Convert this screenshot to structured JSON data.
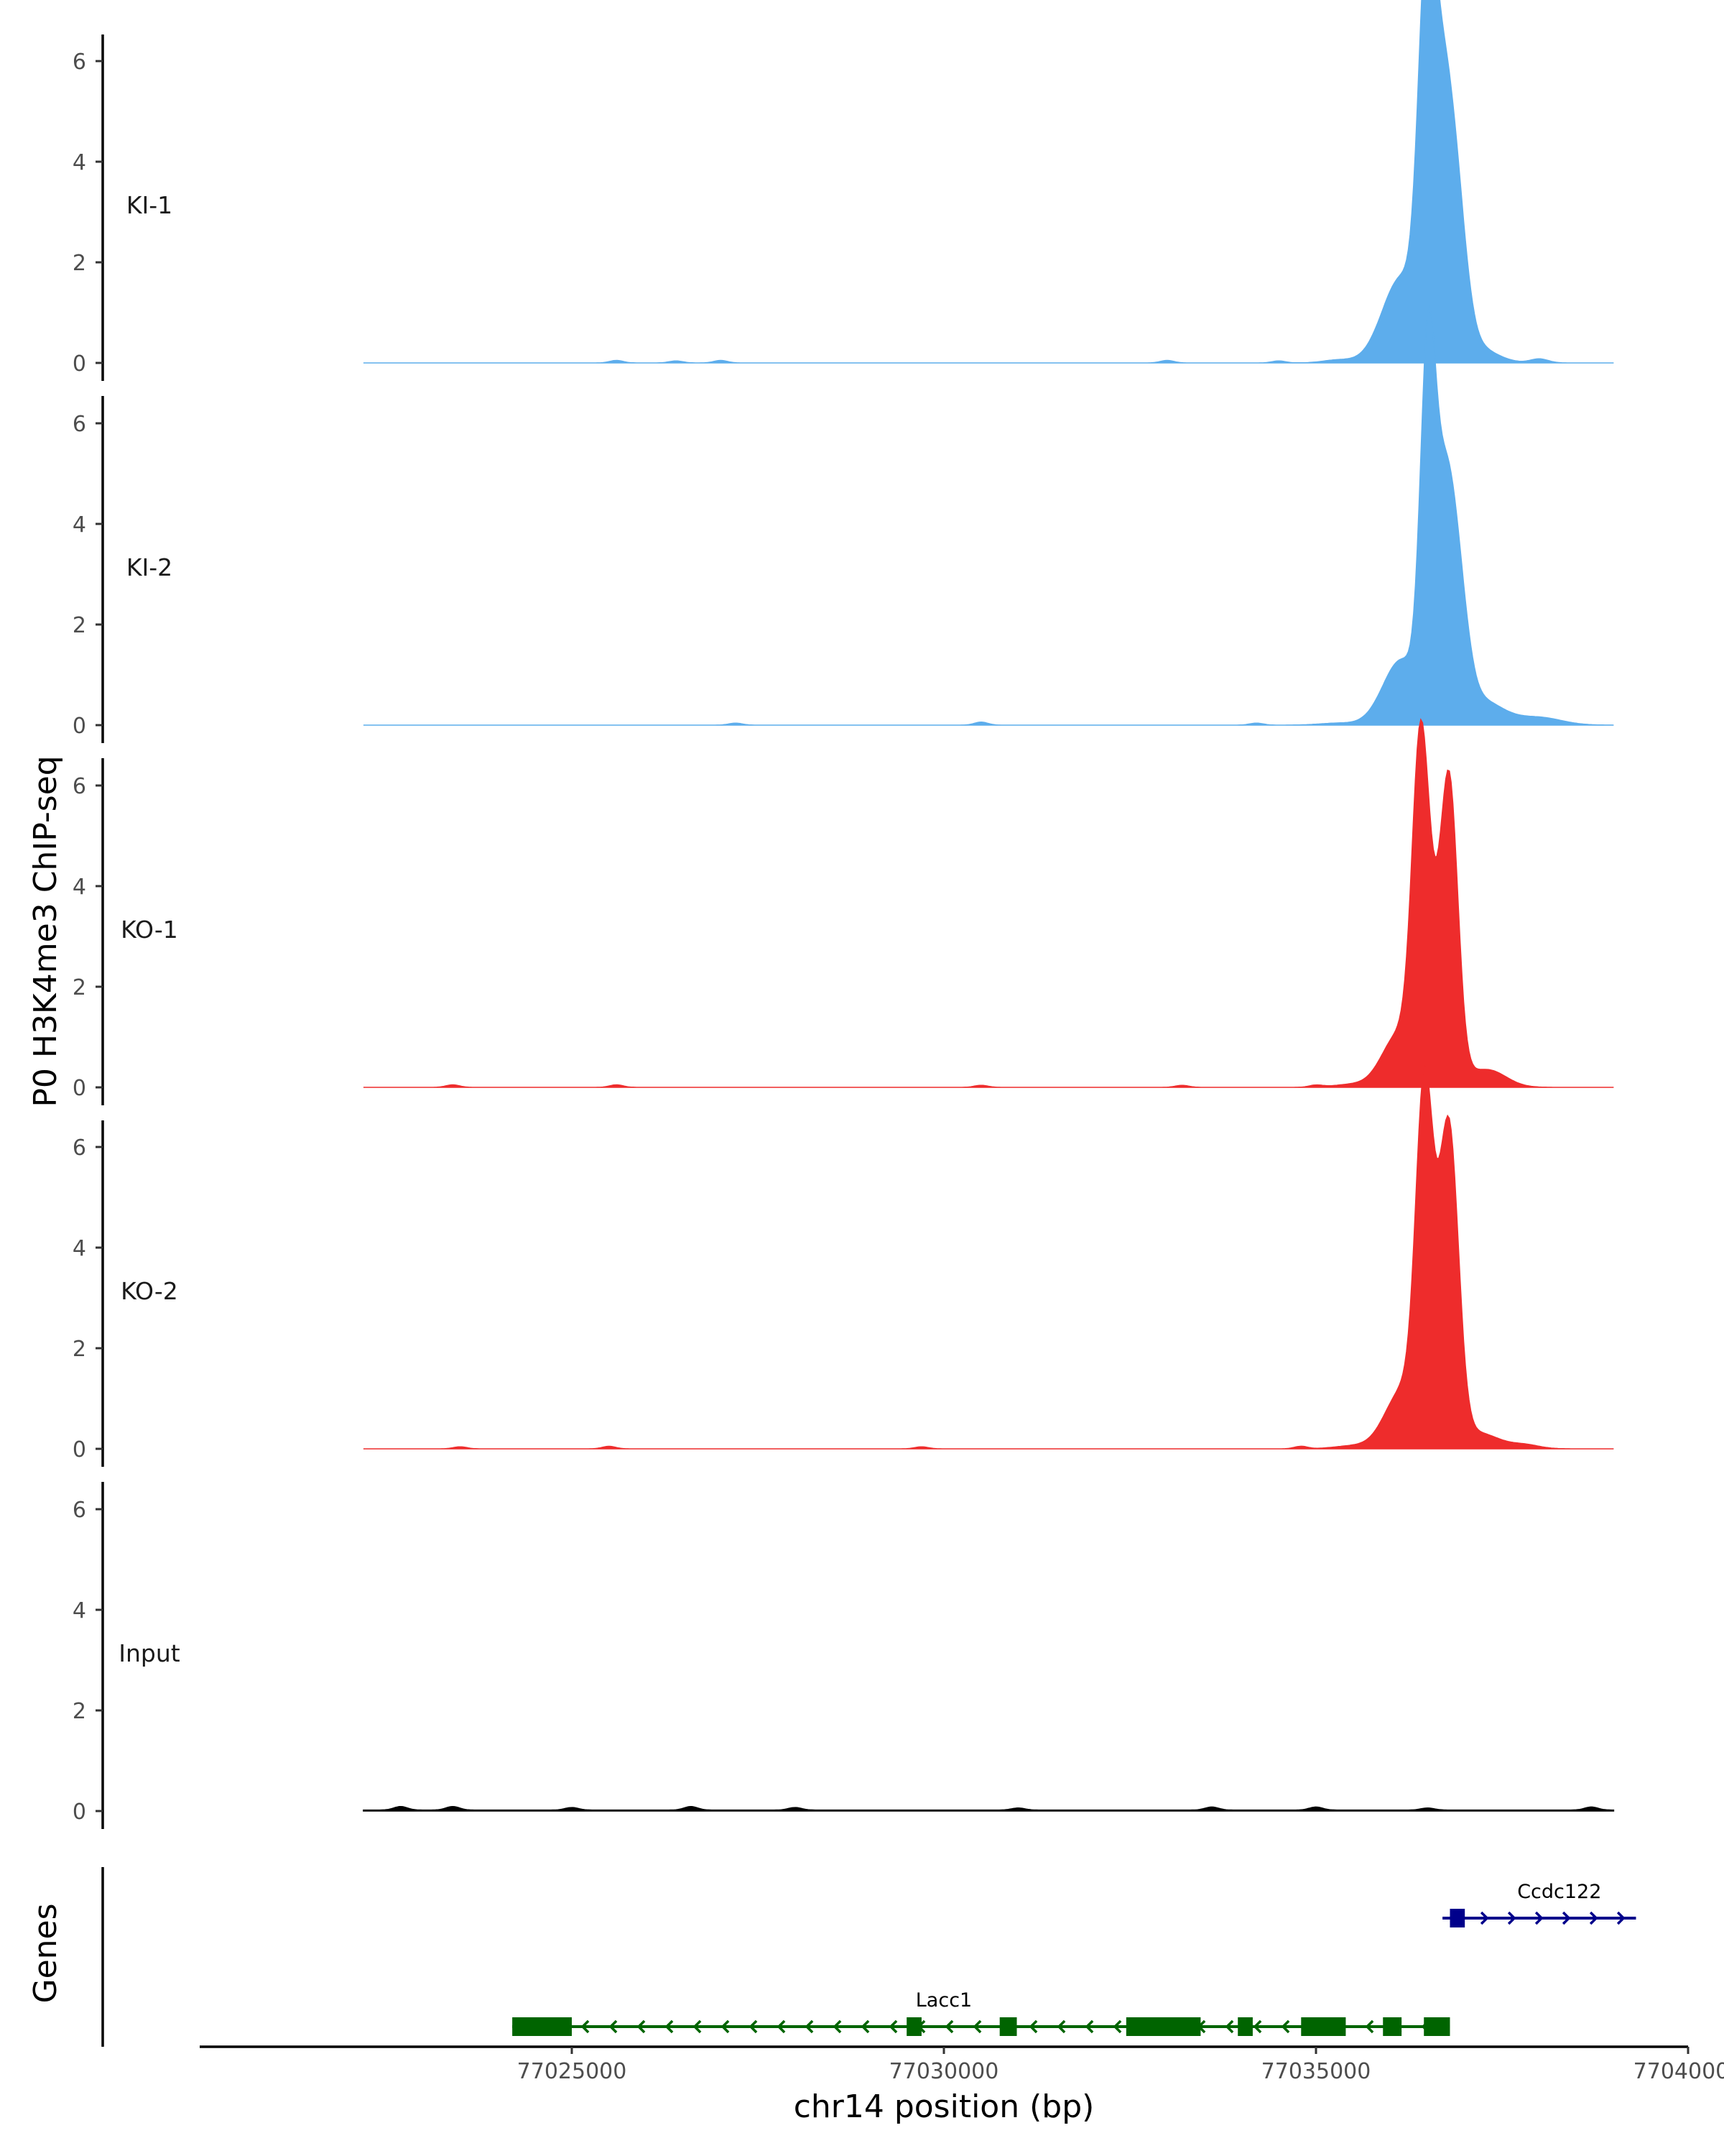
{
  "chart_data": {
    "type": "area",
    "ylabel": "P0 H3K4me3 ChIP-seq",
    "xlabel": "chr14 position (bp)",
    "genes_label": "Genes",
    "xlim": [
      77020000,
      77040000
    ],
    "xticks": [
      77025000,
      77030000,
      77035000,
      77040000
    ],
    "xtick_labels": [
      "77025000",
      "77030000",
      "77035000",
      "77040000"
    ],
    "ylim": [
      0,
      6.5
    ],
    "yticks": [
      0,
      2,
      4,
      6
    ],
    "ytick_labels": [
      "0",
      "2",
      "4",
      "6"
    ],
    "data_range": [
      77022200,
      77039000
    ],
    "tracks": [
      {
        "label": "KI-1",
        "color": "#5DADEC",
        "peaks": [
          [
            77036480,
            5.7,
            110
          ],
          [
            77036680,
            5.0,
            160
          ],
          [
            77036900,
            2.0,
            140
          ],
          [
            77036150,
            1.7,
            260
          ],
          [
            77037100,
            0.35,
            280
          ],
          [
            77038000,
            0.08,
            120
          ],
          [
            77035300,
            0.06,
            200
          ]
        ],
        "bumps": [
          [
            77025600,
            0.05
          ],
          [
            77026400,
            0.04
          ],
          [
            77027000,
            0.05
          ],
          [
            77033000,
            0.05
          ],
          [
            77034500,
            0.04
          ]
        ]
      },
      {
        "label": "KI-2",
        "color": "#5DADEC",
        "peaks": [
          [
            77036500,
            6.2,
            100
          ],
          [
            77036720,
            4.2,
            150
          ],
          [
            77036920,
            1.7,
            140
          ],
          [
            77036150,
            1.3,
            250
          ],
          [
            77037200,
            0.5,
            300
          ],
          [
            77038000,
            0.15,
            300
          ],
          [
            77035300,
            0.04,
            250
          ]
        ],
        "bumps": [
          [
            77027200,
            0.04
          ],
          [
            77030500,
            0.06
          ],
          [
            77034200,
            0.04
          ]
        ]
      },
      {
        "label": "KO-1",
        "color": "#EE2C2C",
        "peaks": [
          [
            77036400,
            5.3,
            110
          ],
          [
            77036800,
            4.6,
            110
          ],
          [
            77036600,
            2.6,
            200
          ],
          [
            77036100,
            1.0,
            220
          ],
          [
            77037300,
            0.35,
            250
          ],
          [
            77035500,
            0.06,
            250
          ]
        ],
        "bumps": [
          [
            77023400,
            0.05
          ],
          [
            77025600,
            0.05
          ],
          [
            77030500,
            0.04
          ],
          [
            77033200,
            0.04
          ],
          [
            77035000,
            0.04
          ]
        ]
      },
      {
        "label": "KO-2",
        "color": "#EE2C2C",
        "peaks": [
          [
            77036450,
            5.3,
            110
          ],
          [
            77036800,
            4.7,
            120
          ],
          [
            77036620,
            2.5,
            200
          ],
          [
            77036150,
            1.1,
            230
          ],
          [
            77037200,
            0.3,
            260
          ],
          [
            77037800,
            0.08,
            200
          ],
          [
            77035500,
            0.06,
            250
          ]
        ],
        "bumps": [
          [
            77023500,
            0.04
          ],
          [
            77025500,
            0.05
          ],
          [
            77029700,
            0.04
          ],
          [
            77034800,
            0.05
          ]
        ]
      },
      {
        "label": "Input",
        "color": "#000000",
        "peaks": [],
        "bumps": [
          [
            77022700,
            0.07
          ],
          [
            77023400,
            0.07
          ],
          [
            77025000,
            0.05
          ],
          [
            77026600,
            0.07
          ],
          [
            77028000,
            0.05
          ],
          [
            77031000,
            0.04
          ],
          [
            77033600,
            0.06
          ],
          [
            77035000,
            0.06
          ],
          [
            77036500,
            0.04
          ],
          [
            77038700,
            0.06
          ]
        ],
        "baseline": 0.02
      }
    ],
    "genes": [
      {
        "name": "Ccdc122",
        "strand": "+",
        "color": "#00008B",
        "start": 77036700,
        "end": 77039300,
        "exons": [
          [
            77036800,
            77037000
          ]
        ]
      },
      {
        "name": "Lacc1",
        "strand": "-",
        "color": "#006400",
        "start": 77024200,
        "end": 77036800,
        "exons": [
          [
            77024200,
            77025000
          ],
          [
            77029500,
            77029700
          ],
          [
            77030750,
            77030980
          ],
          [
            77032450,
            77033450
          ],
          [
            77033950,
            77034150
          ],
          [
            77034800,
            77035400
          ],
          [
            77035900,
            77036150
          ],
          [
            77036450,
            77036800
          ]
        ]
      }
    ]
  }
}
